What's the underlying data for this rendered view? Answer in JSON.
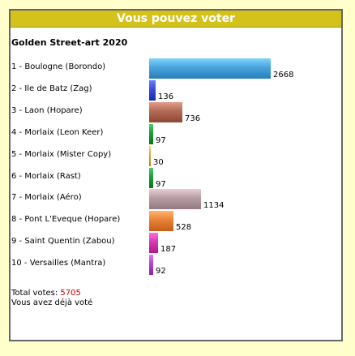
{
  "header": {
    "title": "Vous pouvez voter"
  },
  "poll": {
    "title": "Golden Street-art 2020",
    "options": [
      {
        "label": "1 - Boulogne (Borondo)",
        "votes": 2668,
        "color": "#4aa3dc"
      },
      {
        "label": "2 - Ile de Batz (Zag)",
        "votes": 136,
        "color": "#3a4cd6"
      },
      {
        "label": "3 - Laon (Hopare)",
        "votes": 736,
        "color": "#b06a55"
      },
      {
        "label": "4 - Morlaix (Leon Keer)",
        "votes": 97,
        "color": "#1f9a3a"
      },
      {
        "label": "5 - Morlaix (Mister Copy)",
        "votes": 30,
        "color": "#d9a23a"
      },
      {
        "label": "6 - Morlaix (Rast)",
        "votes": 97,
        "color": "#1f9a3a"
      },
      {
        "label": "7 - Morlaix (Aéro)",
        "votes": 1134,
        "color": "#b79da3"
      },
      {
        "label": "8 - Pont L'Eveque (Hopare)",
        "votes": 528,
        "color": "#e8823a"
      },
      {
        "label": "9 - Saint Quentin (Zabou)",
        "votes": 187,
        "color": "#d63ab0"
      },
      {
        "label": "10 - Versailles (Mantra)",
        "votes": 92,
        "color": "#b044cc"
      }
    ],
    "total_label": "Total votes:",
    "total_value": "5705",
    "voted_message": "Vous avez déjà voté"
  }
}
